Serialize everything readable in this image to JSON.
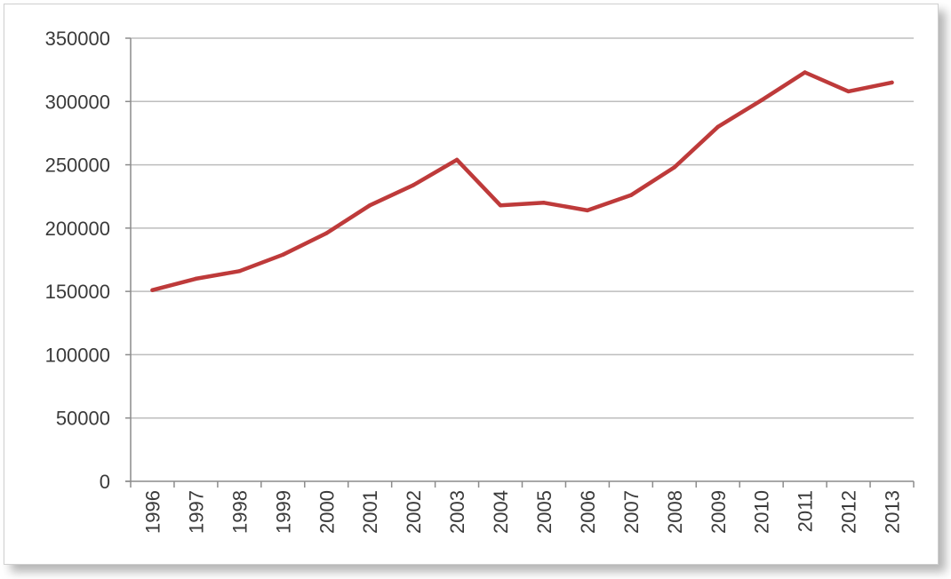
{
  "chart_data": {
    "type": "line",
    "title": "",
    "xlabel": "",
    "ylabel": "",
    "categories": [
      "1996",
      "1997",
      "1998",
      "1999",
      "2000",
      "2001",
      "2002",
      "2003",
      "2004",
      "2005",
      "2006",
      "2007",
      "2008",
      "2009",
      "2010",
      "2011",
      "2012",
      "2013"
    ],
    "series": [
      {
        "values": [
          151000,
          160000,
          166000,
          179000,
          196000,
          218000,
          234000,
          254000,
          218000,
          220000,
          214000,
          226000,
          248000,
          280000,
          301000,
          323000,
          308000,
          315000
        ],
        "color": "#be3a3a"
      }
    ],
    "ylim": [
      0,
      350000
    ],
    "yticks": [
      "0",
      "50000",
      "100000",
      "150000",
      "200000",
      "250000",
      "300000",
      "350000"
    ],
    "grid": true,
    "legend": "none",
    "colors": {
      "line": "#be3a3a",
      "grid": "#bdbdbd",
      "axis": "#8c8c8c",
      "text": "#3a3a3a"
    }
  }
}
